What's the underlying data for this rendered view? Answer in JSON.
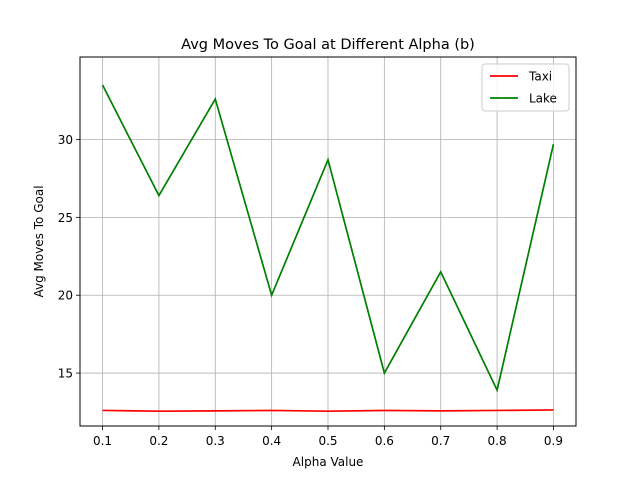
{
  "chart_data": {
    "type": "line",
    "title": "Avg Moves To Goal at Different Alpha (b)",
    "xlabel": "Alpha Value",
    "ylabel": "Avg Moves To Goal",
    "x": [
      0.1,
      0.2,
      0.3,
      0.4,
      0.5,
      0.6,
      0.7,
      0.8,
      0.9
    ],
    "xticks": [
      "0.1",
      "0.2",
      "0.3",
      "0.4",
      "0.5",
      "0.6",
      "0.7",
      "0.8",
      "0.9"
    ],
    "yticks": [
      "15",
      "20",
      "25",
      "30"
    ],
    "ytick_values": [
      15,
      20,
      25,
      30
    ],
    "xlim": [
      0.06,
      0.94
    ],
    "ylim": [
      11.6,
      35.3
    ],
    "grid": true,
    "legend_position": "top-right",
    "series": [
      {
        "name": "Taxi",
        "color": "#ff0000",
        "values": [
          12.6,
          12.55,
          12.57,
          12.6,
          12.55,
          12.6,
          12.57,
          12.6,
          12.63
        ]
      },
      {
        "name": "Lake",
        "color": "#008000",
        "values": [
          33.5,
          26.4,
          32.6,
          20.0,
          28.7,
          15.0,
          21.5,
          13.9,
          29.7
        ]
      }
    ]
  }
}
